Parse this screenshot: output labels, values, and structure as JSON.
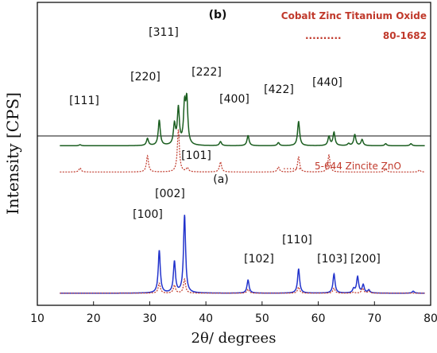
{
  "chart_data": {
    "type": "line",
    "xlabel": "2θ/ degrees",
    "ylabel": "Intensity [CPS]",
    "xlim": [
      10,
      80
    ],
    "ylim": [
      0,
      3
    ],
    "x_ticks": [
      10,
      20,
      30,
      40,
      50,
      60,
      70,
      80
    ],
    "grid": false,
    "panels": [
      {
        "label": "(b)",
        "sample": "Cobalt Zinc Titanium Oxide",
        "reference": "80-1682",
        "reference_marker": "..........",
        "peaks": [
          {
            "hkl": "[111]",
            "x": 17.6
          },
          {
            "hkl": "[220]",
            "x": 29.6
          },
          {
            "hkl": "[311]",
            "x": 35.1
          },
          {
            "hkl": "[222]",
            "x": 36.6
          },
          {
            "hkl": "[400]",
            "x": 42.6
          },
          {
            "hkl": "[422]",
            "x": 52.9
          },
          {
            "hkl": "[440]",
            "x": 62.0
          }
        ]
      },
      {
        "label": "(a)",
        "reference": "5-644 Zincite ZnO",
        "reference_marker": "......",
        "peaks": [
          {
            "hkl": "[100]",
            "x": 31.7
          },
          {
            "hkl": "[002]",
            "x": 34.4
          },
          {
            "hkl": "[101]",
            "x": 36.2
          },
          {
            "hkl": "[102]",
            "x": 47.5
          },
          {
            "hkl": "[110]",
            "x": 56.5
          },
          {
            "hkl": "[103]",
            "x": 62.8
          },
          {
            "hkl": "[200]",
            "x": 66.3
          }
        ]
      }
    ],
    "series": [
      {
        "panel": "(b)",
        "role": "measured",
        "color": "#1b5e20",
        "baseline": 1.58,
        "peaks": [
          [
            17.6,
            0.01
          ],
          [
            29.6,
            0.07
          ],
          [
            31.7,
            0.25
          ],
          [
            34.4,
            0.2
          ],
          [
            35.1,
            0.36
          ],
          [
            36.2,
            0.37
          ],
          [
            36.6,
            0.42
          ],
          [
            42.6,
            0.04
          ],
          [
            47.5,
            0.1
          ],
          [
            52.9,
            0.03
          ],
          [
            56.5,
            0.24
          ],
          [
            61.9,
            0.09
          ],
          [
            62.8,
            0.13
          ],
          [
            65.4,
            0.02
          ],
          [
            66.5,
            0.11
          ],
          [
            67.8,
            0.06
          ],
          [
            72.0,
            0.02
          ],
          [
            76.5,
            0.02
          ]
        ]
      },
      {
        "panel": "(b)",
        "role": "reference",
        "color": "#c0392b",
        "baseline": 1.32,
        "peaks": [
          [
            17.6,
            0.04
          ],
          [
            29.6,
            0.16
          ],
          [
            35.1,
            0.42
          ],
          [
            36.7,
            0.04
          ],
          [
            42.6,
            0.1
          ],
          [
            52.9,
            0.05
          ],
          [
            56.5,
            0.15
          ],
          [
            61.9,
            0.17
          ],
          [
            72.0,
            0.03
          ],
          [
            78.0,
            0.02
          ]
        ]
      },
      {
        "panel": "(a)",
        "role": "measured",
        "color": "#2233cc",
        "baseline": 0.12,
        "peaks": [
          [
            31.7,
            0.42
          ],
          [
            34.4,
            0.31
          ],
          [
            36.2,
            0.77
          ],
          [
            47.5,
            0.13
          ],
          [
            56.5,
            0.24
          ],
          [
            62.8,
            0.19
          ],
          [
            66.3,
            0.04
          ],
          [
            67.0,
            0.16
          ],
          [
            68.0,
            0.08
          ],
          [
            69.0,
            0.03
          ],
          [
            76.9,
            0.02
          ]
        ]
      },
      {
        "panel": "(a)",
        "role": "reference",
        "color": "#c0392b",
        "baseline": 0.12,
        "peaks": [
          [
            31.7,
            0.1
          ],
          [
            34.4,
            0.08
          ],
          [
            36.2,
            0.14
          ],
          [
            47.5,
            0.04
          ],
          [
            56.5,
            0.06
          ],
          [
            62.8,
            0.05
          ],
          [
            66.3,
            0.01
          ],
          [
            67.9,
            0.05
          ],
          [
            69.0,
            0.02
          ]
        ]
      }
    ]
  }
}
